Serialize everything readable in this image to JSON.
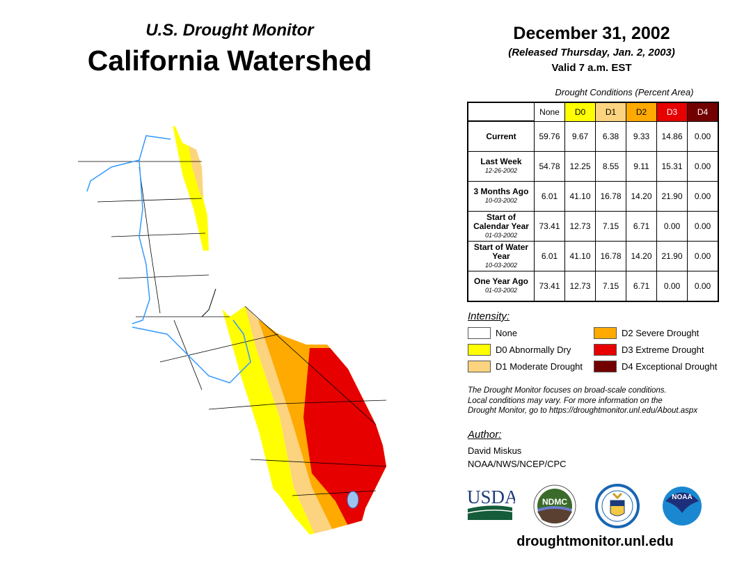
{
  "header": {
    "subtitle": "U.S. Drought Monitor",
    "title": "California Watershed"
  },
  "date": {
    "date": "December 31, 2002",
    "released": "(Released Thursday, Jan. 2, 2003)",
    "valid": "Valid 7 a.m. EST"
  },
  "table": {
    "caption": "Drought Conditions (Percent Area)",
    "columns": [
      "None",
      "D0",
      "D1",
      "D2",
      "D3",
      "D4"
    ],
    "column_colors": [
      "#ffffff",
      "#ffff00",
      "#fcd37f",
      "#ffaa00",
      "#e60000",
      "#730000"
    ],
    "rows": [
      {
        "label": "Current",
        "date": "",
        "values": [
          "59.76",
          "9.67",
          "6.38",
          "9.33",
          "14.86",
          "0.00"
        ]
      },
      {
        "label": "Last Week",
        "date": "12-26-2002",
        "values": [
          "54.78",
          "12.25",
          "8.55",
          "9.11",
          "15.31",
          "0.00"
        ]
      },
      {
        "label": "3 Months Ago",
        "date": "10-03-2002",
        "values": [
          "6.01",
          "41.10",
          "16.78",
          "14.20",
          "21.90",
          "0.00"
        ]
      },
      {
        "label": "Start of Calendar Year",
        "date": "01-03-2002",
        "values": [
          "73.41",
          "12.73",
          "7.15",
          "6.71",
          "0.00",
          "0.00"
        ]
      },
      {
        "label": "Start of Water Year",
        "date": "10-03-2002",
        "values": [
          "6.01",
          "41.10",
          "16.78",
          "14.20",
          "21.90",
          "0.00"
        ]
      },
      {
        "label": "One Year Ago",
        "date": "01-03-2002",
        "values": [
          "73.41",
          "12.73",
          "7.15",
          "6.71",
          "0.00",
          "0.00"
        ]
      }
    ]
  },
  "legend": {
    "title": "Intensity:",
    "items": [
      {
        "label": "None",
        "color": "#ffffff"
      },
      {
        "label": "D0 Abnormally Dry",
        "color": "#ffff00"
      },
      {
        "label": "D1 Moderate Drought",
        "color": "#fcd37f"
      },
      {
        "label": "D2 Severe Drought",
        "color": "#ffaa00"
      },
      {
        "label": "D3 Extreme Drought",
        "color": "#e60000"
      },
      {
        "label": "D4 Exceptional Drought",
        "color": "#730000"
      }
    ]
  },
  "note": [
    "The Drought Monitor focuses on broad-scale conditions.",
    "Local conditions may vary. For more information on the",
    "Drought Monitor, go to https://droughtmonitor.unl.edu/About.aspx"
  ],
  "author": {
    "heading": "Author:",
    "name": "David Miskus",
    "org": "NOAA/NWS/NCEP/CPC"
  },
  "logos": {
    "usda": "USDA",
    "ndmc": "NDMC",
    "noaa": "NOAA"
  },
  "footer": {
    "url": "droughtmonitor.unl.edu"
  }
}
